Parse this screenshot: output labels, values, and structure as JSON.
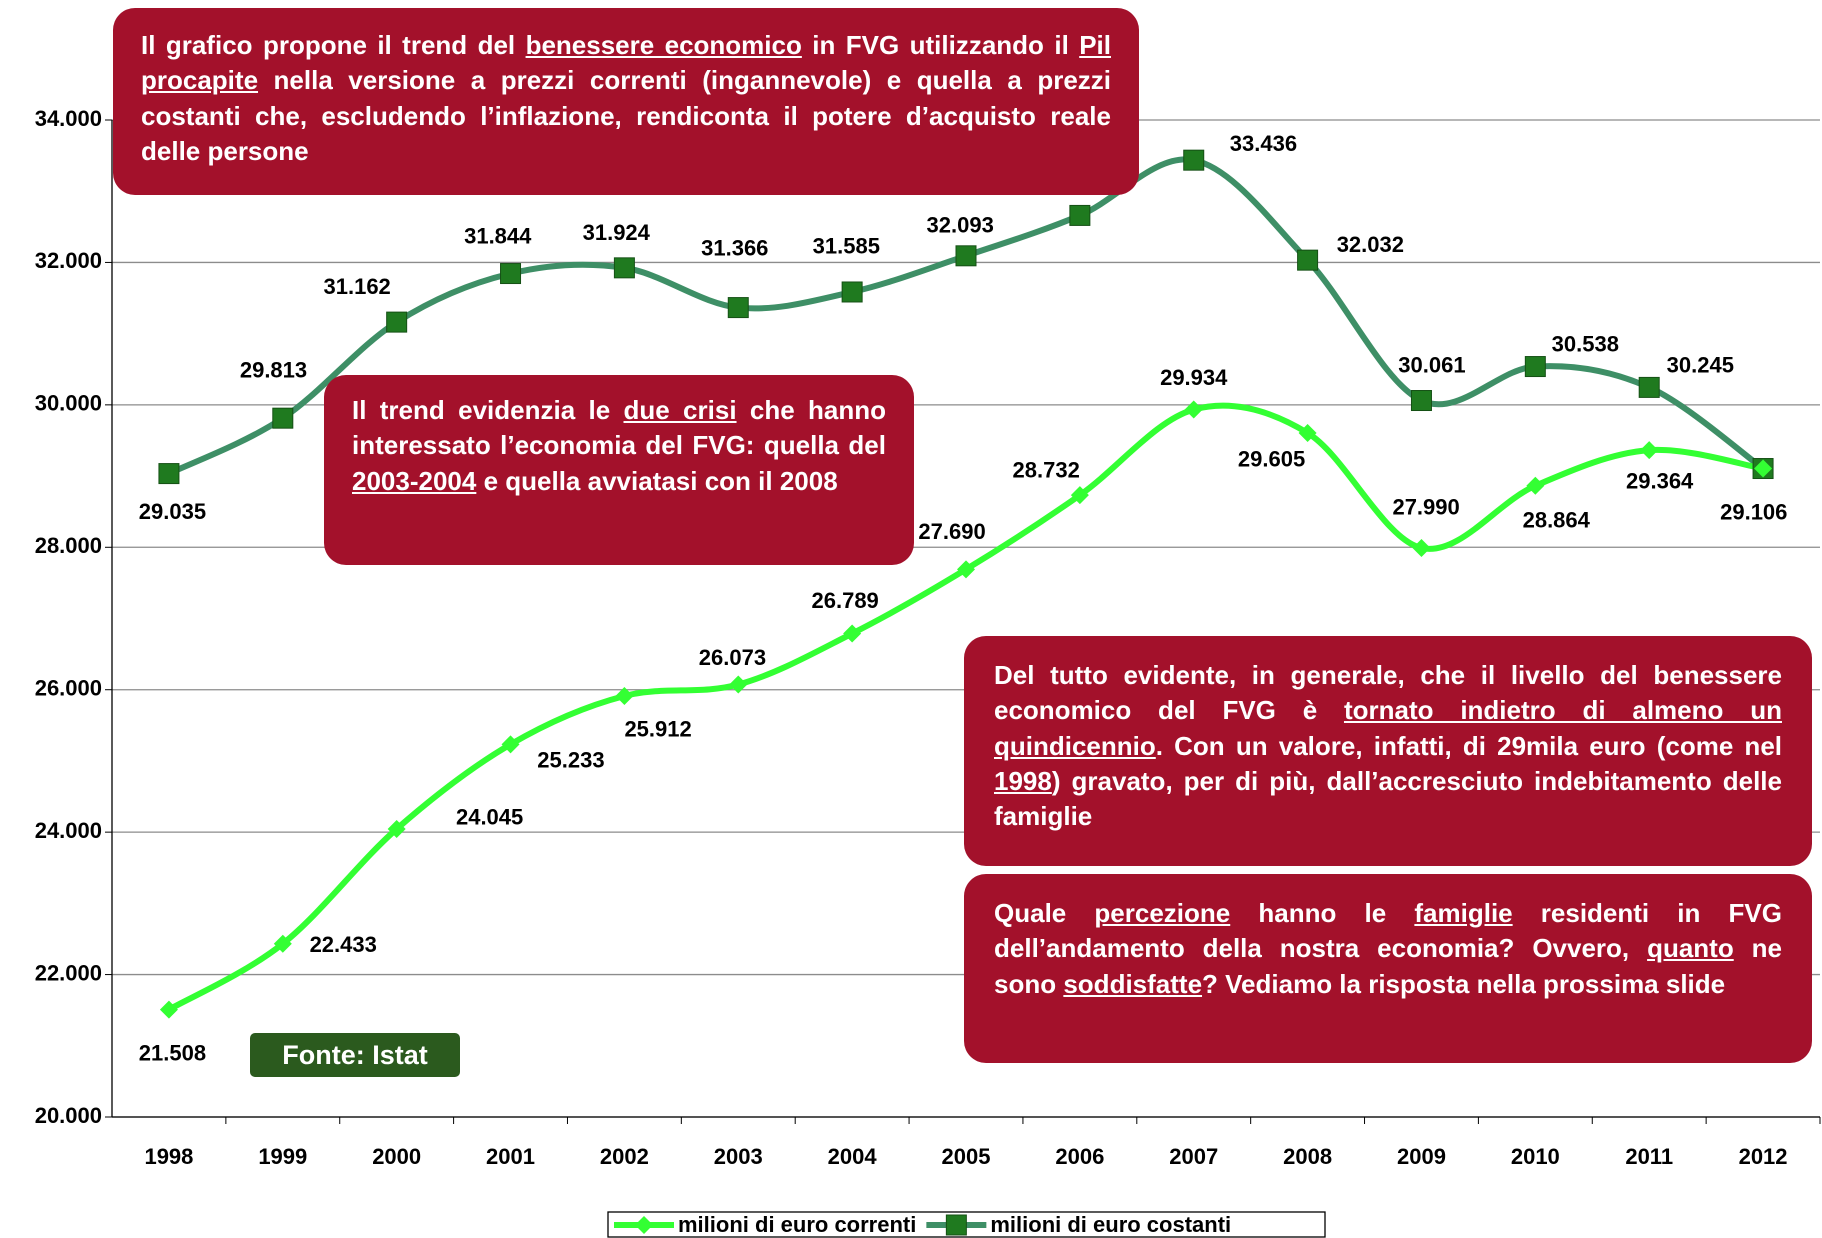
{
  "chart_data": {
    "type": "line",
    "categories": [
      "1998",
      "1999",
      "2000",
      "2001",
      "2002",
      "2003",
      "2004",
      "2005",
      "2006",
      "2007",
      "2008",
      "2009",
      "2010",
      "2011",
      "2012"
    ],
    "series": [
      {
        "name": "milioni di euro correnti",
        "color": "#33ff33",
        "values": [
          21508,
          22433,
          24045,
          25233,
          25912,
          26073,
          26789,
          27690,
          28732,
          29934,
          29605,
          27990,
          28864,
          29364,
          29106
        ],
        "value_labels": [
          "21.508",
          "22.433",
          "24.045",
          "25.233",
          "25.912",
          "26.073",
          "26.789",
          "27.690",
          "28.732",
          "29.934",
          "29.605",
          "27.990",
          "28.864",
          "29.364",
          "29.106"
        ]
      },
      {
        "name": "milioni di euro costanti",
        "color": "#3e8f66",
        "values": [
          29035,
          29813,
          31162,
          31844,
          31924,
          31366,
          31585,
          32093,
          32660,
          33436,
          32032,
          30061,
          30538,
          30245,
          29106
        ],
        "value_labels": [
          "29.035",
          "29.813",
          "31.162",
          "31.844",
          "31.924",
          "31.366",
          "31.585",
          "32.093",
          null,
          "33.436",
          "32.032",
          "30.061",
          "30.538",
          "30.245",
          null
        ]
      }
    ],
    "ylim": [
      20000,
      34000
    ],
    "yticks": [
      {
        "value": 20000,
        "label": "20.000"
      },
      {
        "value": 22000,
        "label": "22.000"
      },
      {
        "value": 24000,
        "label": "24.000"
      },
      {
        "value": 26000,
        "label": "26.000"
      },
      {
        "value": 28000,
        "label": "28.000"
      },
      {
        "value": 30000,
        "label": "30.000"
      },
      {
        "value": 32000,
        "label": "32.000"
      },
      {
        "value": 34000,
        "label": "34.000"
      }
    ],
    "grid": true,
    "legend": "bottom",
    "source": "Fonte: Istat",
    "annotations": [
      [
        "Il grafico propone il trend del ",
        "benessere economico",
        " in FVG utilizzando il ",
        "Pil procapite",
        " nella versione a prezzi correnti (ingannevole) e quella a prezzi costanti che, escludendo l’inflazione, rendiconta il potere d’acquisto reale delle persone"
      ],
      [
        "Il trend evidenzia le ",
        "due crisi",
        " che hanno interessato l’economia del FVG: quella del ",
        "2003-2004",
        " e quella avviatasi  con il 2008"
      ],
      [
        "Del tutto evidente, in generale, che il livello del benessere economico del FVG è ",
        "tornato indietro di almeno un quindicennio",
        ". Con un valore, infatti, di 29mila euro (come nel ",
        "1998",
        ") gravato, per di più, dall’accresciuto indebitamento delle famiglie"
      ],
      [
        "Quale ",
        "percezione",
        " hanno le ",
        "famiglie",
        " residenti in FVG dell’andamento della nostra economia? Ovvero, ",
        "quanto",
        " ne sono ",
        "soddisfatte",
        "? Vediamo la risposta nella prossima slide"
      ]
    ]
  }
}
